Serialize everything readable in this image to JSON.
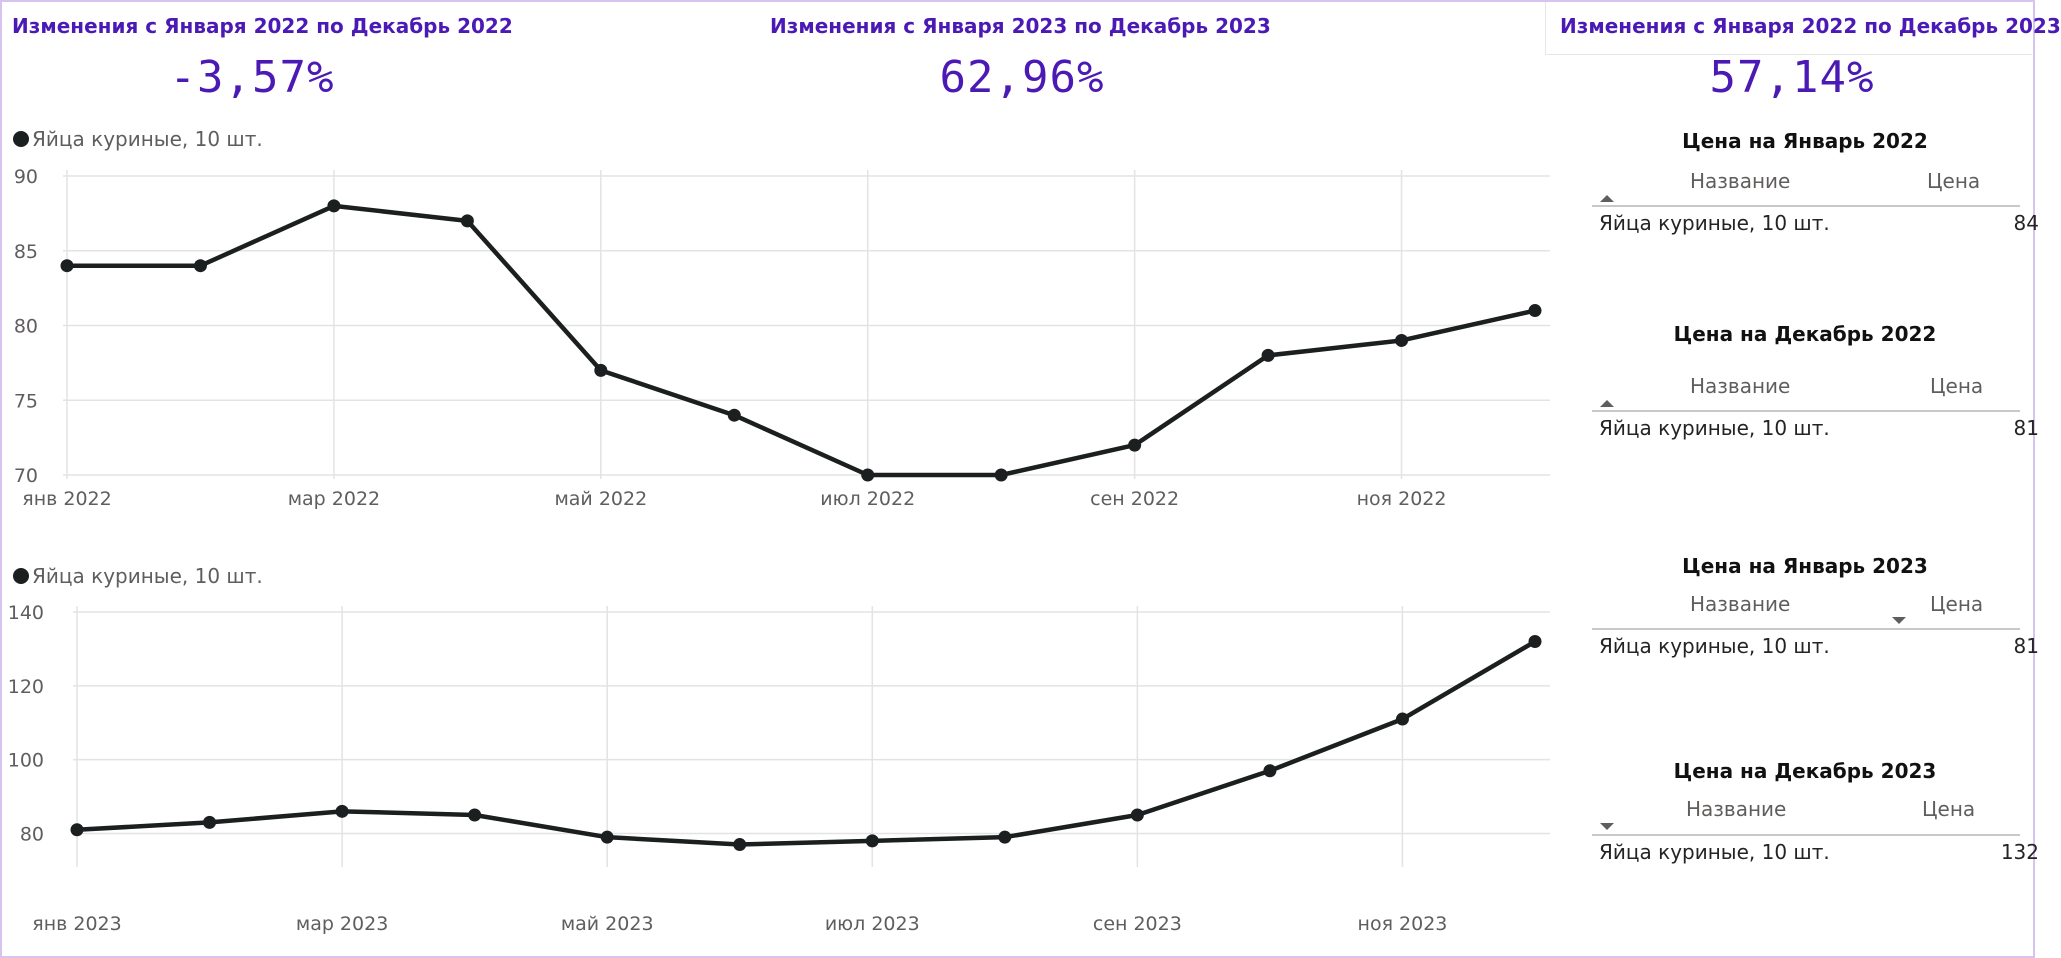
{
  "kpis": [
    {
      "title": "Изменения с Января 2022 по Декабрь 2022",
      "value": "-3,57%"
    },
    {
      "title": "Изменения с Января 2023 по Декабрь 2023",
      "value": "62,96%"
    },
    {
      "title": "Изменения с Января 2022 по Декабрь 2023",
      "value": "57,14%"
    }
  ],
  "colors": {
    "accent": "#4b1ab5",
    "series": "#1b1f20",
    "grid": "#e3e3e3",
    "axis_text": "#605e5c",
    "frame": "#d8c2ee"
  },
  "chart_data": [
    {
      "type": "line",
      "legend": "Яйца куриные, 10 шт.",
      "x": [
        "янв 2022",
        "фев 2022",
        "мар 2022",
        "апр 2022",
        "май 2022",
        "июн 2022",
        "июл 2022",
        "авг 2022",
        "сен 2022",
        "окт 2022",
        "ноя 2022",
        "дек 2022"
      ],
      "xtick_labels": [
        "янв 2022",
        "",
        "мар 2022",
        "",
        "май 2022",
        "",
        "июл 2022",
        "",
        "сен 2022",
        "",
        "ноя 2022",
        ""
      ],
      "series": [
        {
          "name": "Яйца куриные, 10 шт.",
          "values": [
            84,
            84,
            88,
            87,
            77,
            74,
            70,
            70,
            72,
            78,
            79,
            81
          ]
        }
      ],
      "yticks": [
        70,
        75,
        80,
        85,
        90
      ],
      "ylim": [
        70,
        90
      ],
      "grid": true,
      "legend_position": "top-left"
    },
    {
      "type": "line",
      "legend": "Яйца куриные, 10 шт.",
      "x": [
        "янв 2023",
        "фев 2023",
        "мар 2023",
        "апр 2023",
        "май 2023",
        "июн 2023",
        "июл 2023",
        "авг 2023",
        "сен 2023",
        "окт 2023",
        "ноя 2023",
        "дек 2023"
      ],
      "xtick_labels": [
        "янв 2023",
        "",
        "мар 2023",
        "",
        "май 2023",
        "",
        "июл 2023",
        "",
        "сен 2023",
        "",
        "ноя 2023",
        ""
      ],
      "series": [
        {
          "name": "Яйца куриные, 10 шт.",
          "values": [
            81,
            83,
            86,
            85,
            79,
            77,
            78,
            79,
            85,
            97,
            111,
            132
          ]
        }
      ],
      "yticks": [
        80,
        100,
        120,
        140
      ],
      "ylim": [
        72,
        140
      ],
      "grid": true,
      "legend_position": "top-left"
    }
  ],
  "tables": [
    {
      "title": "Цена на Январь 2022",
      "col_name": "Название",
      "col_price": "Цена",
      "sort": "name-asc",
      "rows": [
        {
          "name": "Яйца куриные, 10 шт.",
          "price": "84"
        }
      ]
    },
    {
      "title": "Цена на Декабрь 2022",
      "col_name": "Название",
      "col_price": "Цена",
      "sort": "name-asc",
      "rows": [
        {
          "name": "Яйца куриные, 10 шт.",
          "price": "81"
        }
      ]
    },
    {
      "title": "Цена на Январь 2023",
      "col_name": "Название",
      "col_price": "Цена",
      "sort": "price-desc",
      "rows": [
        {
          "name": "Яйца куриные, 10 шт.",
          "price": "81"
        }
      ]
    },
    {
      "title": "Цена на Декабрь 2023",
      "col_name": "Название",
      "col_price": "Цена",
      "sort": "name-desc",
      "rows": [
        {
          "name": "Яйца куриные, 10 шт.",
          "price": "132"
        }
      ]
    }
  ]
}
